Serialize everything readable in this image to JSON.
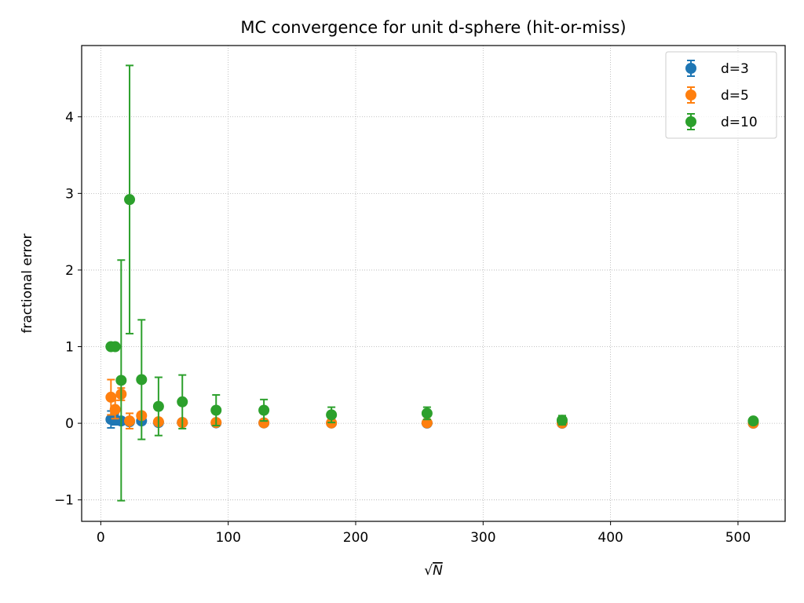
{
  "chart_data": {
    "type": "scatter",
    "title": "MC convergence for unit d-sphere (hit-or-miss)",
    "xlabel": "N",
    "xlabel_prefix": "√",
    "ylabel": "fractional error",
    "xlim": [
      -15,
      537
    ],
    "ylim": [
      -1.28,
      4.93
    ],
    "xticks": [
      0,
      100,
      200,
      300,
      400,
      500
    ],
    "yticks": [
      -1,
      0,
      1,
      2,
      3,
      4
    ],
    "xtick_labels": [
      "0",
      "100",
      "200",
      "300",
      "400",
      "500"
    ],
    "ytick_labels": [
      "−1",
      "0",
      "1",
      "2",
      "3",
      "4"
    ],
    "grid": true,
    "legend_position": "top-right",
    "series": [
      {
        "name": "d=3",
        "color": "#1f77b4",
        "x": [
          8,
          11.3,
          16,
          22.6,
          32,
          45.3,
          64,
          90.5,
          128,
          181,
          256,
          362,
          512
        ],
        "y": [
          0.05,
          0.05,
          0.03,
          0.02,
          0.03,
          0.01,
          0.01,
          0.005,
          0.004,
          0.003,
          0.002,
          0.001,
          0.001
        ],
        "err": [
          0.11,
          0.07,
          0.04,
          0.03,
          0.02,
          0.015,
          0.01,
          0.008,
          0.006,
          0.004,
          0.003,
          0.002,
          0.001
        ]
      },
      {
        "name": "d=5",
        "color": "#ff7f0e",
        "x": [
          8,
          11.3,
          16,
          22.6,
          32,
          45.3,
          64,
          90.5,
          128,
          181,
          256,
          362,
          512
        ],
        "y": [
          0.34,
          0.18,
          0.38,
          0.03,
          0.1,
          0.02,
          0.01,
          0.01,
          0.005,
          0.004,
          0.005,
          0.003,
          0.002
        ],
        "err": [
          0.23,
          0.12,
          0.08,
          0.1,
          0.04,
          0.03,
          0.02,
          0.015,
          0.01,
          0.007,
          0.005,
          0.003,
          0.002
        ]
      },
      {
        "name": "d=10",
        "color": "#2ca02c",
        "x": [
          8,
          11.3,
          16,
          22.6,
          32,
          45.3,
          64,
          90.5,
          128,
          181,
          256,
          362,
          512
        ],
        "y": [
          1.0,
          1.0,
          0.56,
          2.92,
          0.57,
          0.22,
          0.28,
          0.17,
          0.17,
          0.11,
          0.13,
          0.04,
          0.03
        ],
        "err": [
          0,
          0,
          1.57,
          1.75,
          0.78,
          0.38,
          0.35,
          0.2,
          0.14,
          0.1,
          0.08,
          0.06,
          0.04
        ]
      }
    ]
  }
}
